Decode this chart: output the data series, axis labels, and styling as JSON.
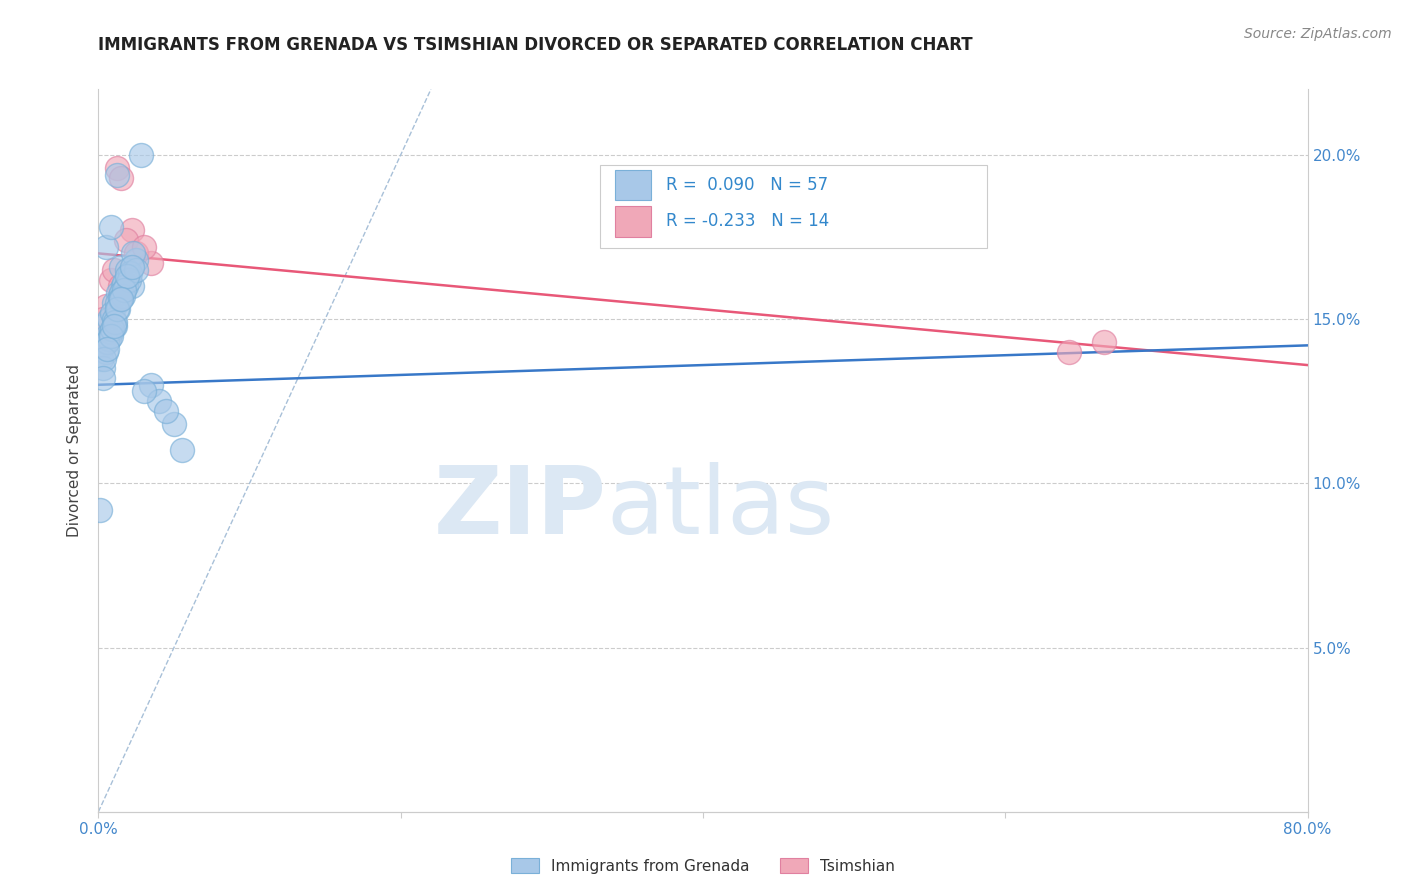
{
  "title": "IMMIGRANTS FROM GRENADA VS TSIMSHIAN DIVORCED OR SEPARATED CORRELATION CHART",
  "source": "Source: ZipAtlas.com",
  "ylabel": "Divorced or Separated",
  "xlim": [
    0,
    0.8
  ],
  "ylim": [
    0,
    0.22
  ],
  "xticks": [
    0.0,
    0.2,
    0.4,
    0.6,
    0.8
  ],
  "xticklabels": [
    "0.0%",
    "",
    "",
    "",
    "80.0%"
  ],
  "yticks": [
    0.0,
    0.05,
    0.1,
    0.15,
    0.2
  ],
  "yticklabels_right": [
    "",
    "5.0%",
    "10.0%",
    "15.0%",
    "20.0%"
  ],
  "blue_color": "#a8c8e8",
  "pink_color": "#f0a8b8",
  "blue_edge_color": "#7ab0d8",
  "pink_edge_color": "#e080a0",
  "blue_line_color": "#3878c8",
  "pink_line_color": "#e85878",
  "dashed_line_color": "#a8c0d8",
  "tick_color": "#4488cc",
  "grid_color": "#cccccc",
  "watermark_color": "#dce8f4",
  "title_color": "#222222",
  "source_color": "#888888",
  "legend_text_color": "#3388cc",
  "blue_scatter_x": [
    0.012,
    0.028,
    0.005,
    0.008,
    0.015,
    0.022,
    0.003,
    0.018,
    0.01,
    0.007,
    0.013,
    0.02,
    0.006,
    0.025,
    0.004,
    0.009,
    0.016,
    0.011,
    0.014,
    0.019,
    0.002,
    0.017,
    0.008,
    0.023,
    0.005,
    0.012,
    0.007,
    0.015,
    0.01,
    0.021,
    0.003,
    0.018,
    0.006,
    0.013,
    0.009,
    0.016,
    0.004,
    0.02,
    0.011,
    0.014,
    0.025,
    0.008,
    0.017,
    0.012,
    0.006,
    0.019,
    0.003,
    0.01,
    0.015,
    0.022,
    0.035,
    0.04,
    0.05,
    0.03,
    0.045,
    0.001,
    0.055
  ],
  "blue_scatter_y": [
    0.194,
    0.2,
    0.172,
    0.178,
    0.166,
    0.16,
    0.148,
    0.162,
    0.155,
    0.15,
    0.158,
    0.163,
    0.145,
    0.168,
    0.142,
    0.152,
    0.16,
    0.148,
    0.157,
    0.165,
    0.138,
    0.161,
    0.146,
    0.17,
    0.14,
    0.155,
    0.144,
    0.158,
    0.15,
    0.164,
    0.135,
    0.16,
    0.143,
    0.153,
    0.147,
    0.157,
    0.138,
    0.162,
    0.149,
    0.156,
    0.165,
    0.145,
    0.159,
    0.153,
    0.141,
    0.163,
    0.132,
    0.148,
    0.156,
    0.166,
    0.13,
    0.125,
    0.118,
    0.128,
    0.122,
    0.092,
    0.11
  ],
  "pink_scatter_x": [
    0.012,
    0.015,
    0.035,
    0.022,
    0.008,
    0.018,
    0.025,
    0.01,
    0.03,
    0.014,
    0.005,
    0.642,
    0.665,
    0.003
  ],
  "pink_scatter_y": [
    0.196,
    0.193,
    0.167,
    0.177,
    0.162,
    0.174,
    0.17,
    0.165,
    0.172,
    0.16,
    0.154,
    0.14,
    0.143,
    0.15
  ],
  "blue_trendline_x": [
    0.0,
    0.8
  ],
  "blue_trendline_y": [
    0.13,
    0.142
  ],
  "pink_trendline_x": [
    0.0,
    0.8
  ],
  "pink_trendline_y": [
    0.17,
    0.136
  ],
  "dashed_line_x": [
    0.0,
    0.22
  ],
  "dashed_line_y": [
    0.0,
    0.22
  ]
}
